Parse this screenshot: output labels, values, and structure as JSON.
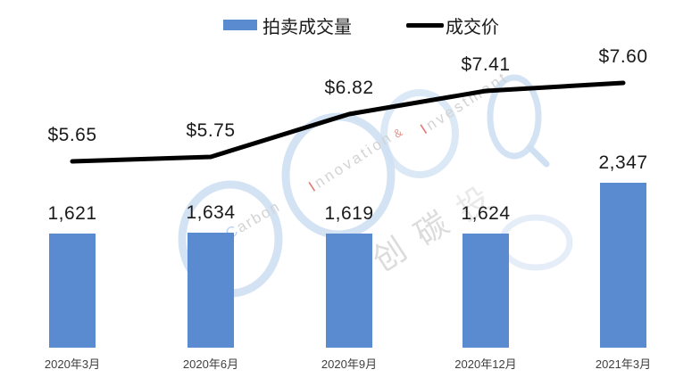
{
  "page": {
    "background": "#ffffff"
  },
  "legend": {
    "items": [
      {
        "label": "拍卖成交量",
        "marker": "bar-swatch",
        "color": "#5A8BD0"
      },
      {
        "label": "成交价",
        "marker": "line-swatch",
        "color": "#000000"
      }
    ]
  },
  "chart_data": {
    "type": "bar",
    "subtype": "bar+line combo",
    "title": "",
    "categories": [
      "2020年3月",
      "2020年6月",
      "2020年9月",
      "2020年12月",
      "2021年3月"
    ],
    "series": [
      {
        "name": "拍卖成交量",
        "type": "bar",
        "values": [
          1621,
          1634,
          1619,
          1624,
          2347
        ],
        "labels": [
          "1,621",
          "1,634",
          "1,619",
          "1,624",
          "2,347"
        ],
        "color": "#5A8BD0"
      },
      {
        "name": "成交价",
        "type": "line",
        "values": [
          5.65,
          5.75,
          6.82,
          7.41,
          7.6
        ],
        "labels": [
          "$5.65",
          "$5.75",
          "$6.82",
          "$7.41",
          "$7.60"
        ],
        "color": "#000000",
        "stroke_width": 5
      }
    ],
    "legend_position": "top",
    "grid": false,
    "axes_visible": false,
    "xlabel": "",
    "ylabel": ""
  },
  "watermark": {
    "ring_color": "#cfe0f3",
    "gray_text_color": "#d3d3d3",
    "accent_red": "#dd7a72",
    "blue_letter_color": "#b9d1ed",
    "cjk_color": "#dcdcdc",
    "texts": {
      "brand": "SinoCarbon",
      "word1": "Innovation",
      "amp": "&",
      "word2": "Investment",
      "cjk": [
        "创",
        "碳",
        "投"
      ]
    }
  }
}
